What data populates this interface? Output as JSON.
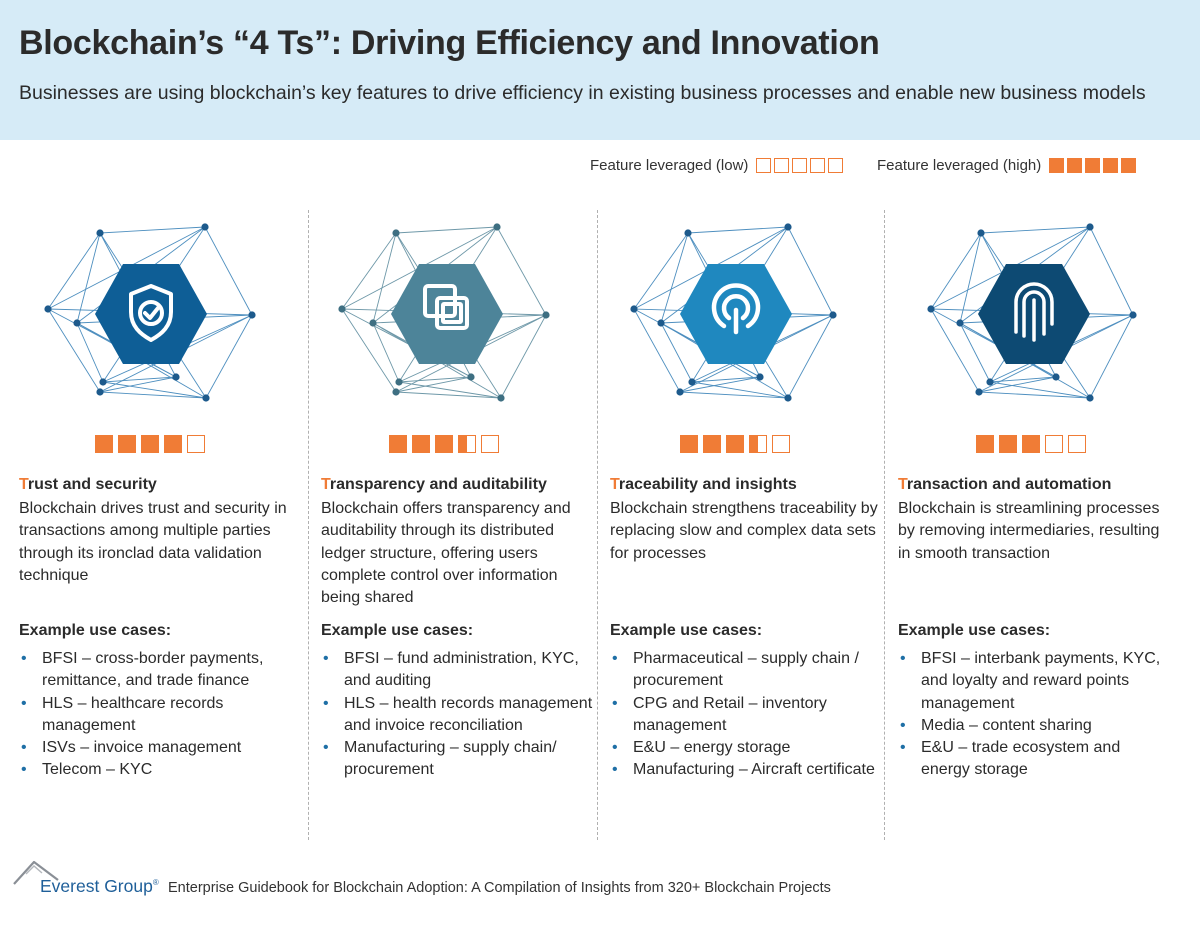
{
  "header": {
    "title": "Blockchain’s “4 Ts”: Driving Efficiency and Innovation",
    "subtitle": "Businesses are using blockchain’s key features to drive efficiency in existing business processes and enable new business models"
  },
  "legend": {
    "low_label": "Feature leveraged (low)",
    "high_label": "Feature leveraged (high)",
    "low_level": 0,
    "high_level": 5
  },
  "colors": {
    "accent": "#f07c36",
    "header_bg": "#d6ebf7",
    "hex_trust": "#0e5e96",
    "hex_transparency": "#4d8499",
    "hex_traceability": "#1f88bf",
    "hex_transaction": "#0d4a73"
  },
  "columns": [
    {
      "icon": "shield-check-icon",
      "rating": 4,
      "heading_first": "T",
      "heading_rest": "rust and security",
      "description": "Blockchain drives trust and security in transactions among multiple parties through its ironclad data validation technique",
      "examples_title": "Example use cases:",
      "uses": [
        "BFSI – cross-border payments, remittance, and trade finance",
        "HLS – healthcare records management",
        "ISVs – invoice management",
        "Telecom – KYC"
      ]
    },
    {
      "icon": "overlapping-squares-icon",
      "rating": 3.5,
      "heading_first": "T",
      "heading_rest": "ransparency and auditability",
      "description": "Blockchain offers transparency and auditability through its distributed ledger structure, offering users complete control over information being shared",
      "examples_title": "Example use cases:",
      "uses": [
        "BFSI – fund administration, KYC, and auditing",
        "HLS – health records management and invoice reconciliation",
        "Manufacturing – supply chain/ procurement"
      ]
    },
    {
      "icon": "traceability-icon",
      "rating": 3.5,
      "heading_first": "T",
      "heading_rest": "raceability and insights",
      "description": "Blockchain strengthens traceability by replacing slow and complex data sets for processes",
      "examples_title": "Example use cases:",
      "uses": [
        "Pharmaceutical – supply chain / procurement",
        "CPG and Retail – inventory management",
        "E&U – energy storage",
        "Manufacturing – Aircraft certificate"
      ]
    },
    {
      "icon": "fingerprint-icon",
      "rating": 3,
      "heading_first": "T",
      "heading_rest": "ransaction and automation",
      "description": "Blockchain is streamlining processes by removing intermediaries, resulting in smooth transaction",
      "examples_title": "Example use cases:",
      "uses": [
        "BFSI – interbank payments, KYC, and loyalty and reward points management",
        "Media – content sharing",
        "E&U – trade ecosystem and energy storage"
      ]
    }
  ],
  "footer": {
    "brand": "Everest Group",
    "trademark": "®",
    "source": "Enterprise Guidebook for Blockchain Adoption: A Compilation of Insights from 320+ Blockchain Projects"
  }
}
